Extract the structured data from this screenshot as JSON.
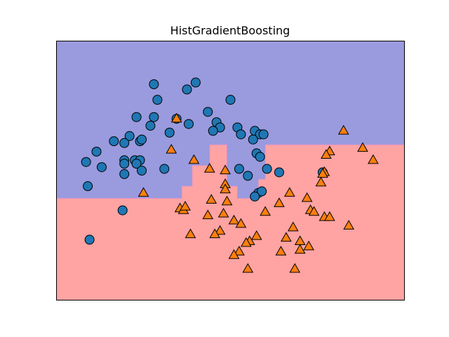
{
  "chart_data": {
    "type": "scatter",
    "title": "HistGradientBoosting",
    "xlabel": "",
    "ylabel": "",
    "xlim": [
      0,
      100
    ],
    "ylim": [
      0,
      75
    ],
    "grid": false,
    "ticks": false,
    "legend": "none",
    "decision_regions": {
      "class_0_color": "#9a9ade",
      "class_1_color": "#ffa3a3",
      "boundary": [
        [
          0,
          29.5
        ],
        [
          36,
          29.5
        ],
        [
          36,
          33
        ],
        [
          39,
          33
        ],
        [
          39,
          39
        ],
        [
          44,
          39
        ],
        [
          44,
          45
        ],
        [
          49,
          45
        ],
        [
          49,
          33
        ],
        [
          52,
          33
        ],
        [
          52,
          29.5
        ],
        [
          58,
          29.5
        ],
        [
          58,
          35
        ],
        [
          60,
          35
        ],
        [
          60,
          45
        ],
        [
          100,
          45
        ]
      ]
    },
    "series": [
      {
        "marker": "circle",
        "color": "#1f77b4",
        "points": [
          [
            28,
            62.5
          ],
          [
            40,
            63
          ],
          [
            37.5,
            61
          ],
          [
            29,
            58
          ],
          [
            50,
            58
          ],
          [
            23,
            53
          ],
          [
            28,
            53
          ],
          [
            43.5,
            54.5
          ],
          [
            34.5,
            52.5
          ],
          [
            46,
            51.5
          ],
          [
            52,
            50
          ],
          [
            27,
            50.5
          ],
          [
            47,
            50
          ],
          [
            38,
            51
          ],
          [
            32.5,
            48.5
          ],
          [
            57,
            49
          ],
          [
            45,
            49
          ],
          [
            21,
            47.5
          ],
          [
            24,
            46
          ],
          [
            24.5,
            46.5
          ],
          [
            53,
            48
          ],
          [
            58.5,
            48
          ],
          [
            59.5,
            48
          ],
          [
            56.5,
            46.5
          ],
          [
            16.5,
            46
          ],
          [
            19.5,
            45.5
          ],
          [
            11.5,
            43
          ],
          [
            57.5,
            42.5
          ],
          [
            8.5,
            40
          ],
          [
            19.5,
            40.5
          ],
          [
            22.5,
            40.5
          ],
          [
            24,
            40.5
          ],
          [
            23,
            39.5
          ],
          [
            58.5,
            41.5
          ],
          [
            13,
            38.5
          ],
          [
            19.5,
            39.5
          ],
          [
            24.5,
            37.5
          ],
          [
            31,
            38
          ],
          [
            52.5,
            38
          ],
          [
            60.5,
            38
          ],
          [
            64,
            37
          ],
          [
            19.5,
            36.5
          ],
          [
            55,
            36
          ],
          [
            76.5,
            37
          ],
          [
            9,
            33
          ],
          [
            58,
            31
          ],
          [
            59,
            31.5
          ],
          [
            57,
            30
          ],
          [
            19,
            26
          ],
          [
            9.5,
            17.5
          ]
        ]
      },
      {
        "marker": "triangle",
        "color": "#ff7f0e",
        "points": [
          [
            34.5,
            52.5
          ],
          [
            82.5,
            49
          ],
          [
            88,
            44
          ],
          [
            33,
            43.5
          ],
          [
            78.5,
            43
          ],
          [
            77.5,
            42
          ],
          [
            91,
            40.5
          ],
          [
            39.5,
            40.5
          ],
          [
            44,
            38
          ],
          [
            48.5,
            37.5
          ],
          [
            77,
            37
          ],
          [
            76.5,
            36.5
          ],
          [
            76,
            34
          ],
          [
            48.5,
            33.5
          ],
          [
            48.5,
            32
          ],
          [
            25,
            31
          ],
          [
            67,
            31
          ],
          [
            72,
            29.5
          ],
          [
            44.5,
            29
          ],
          [
            49,
            28.5
          ],
          [
            64,
            28
          ],
          [
            35.5,
            26.5
          ],
          [
            36.5,
            26
          ],
          [
            37,
            27
          ],
          [
            73,
            26
          ],
          [
            74,
            25.5
          ],
          [
            60,
            25.5
          ],
          [
            48,
            25
          ],
          [
            43.5,
            24.5
          ],
          [
            77,
            24
          ],
          [
            78.5,
            24
          ],
          [
            51,
            23
          ],
          [
            53,
            22
          ],
          [
            84,
            21.5
          ],
          [
            68,
            21
          ],
          [
            47,
            20
          ],
          [
            38.5,
            19
          ],
          [
            45.5,
            19
          ],
          [
            57.5,
            18.5
          ],
          [
            66,
            18
          ],
          [
            55.5,
            17
          ],
          [
            54.5,
            16.5
          ],
          [
            70,
            17
          ],
          [
            72.5,
            15.5
          ],
          [
            52.5,
            14
          ],
          [
            64.5,
            14
          ],
          [
            70,
            14.5
          ],
          [
            51,
            13
          ],
          [
            55,
            9
          ],
          [
            68.5,
            9
          ]
        ]
      }
    ]
  }
}
